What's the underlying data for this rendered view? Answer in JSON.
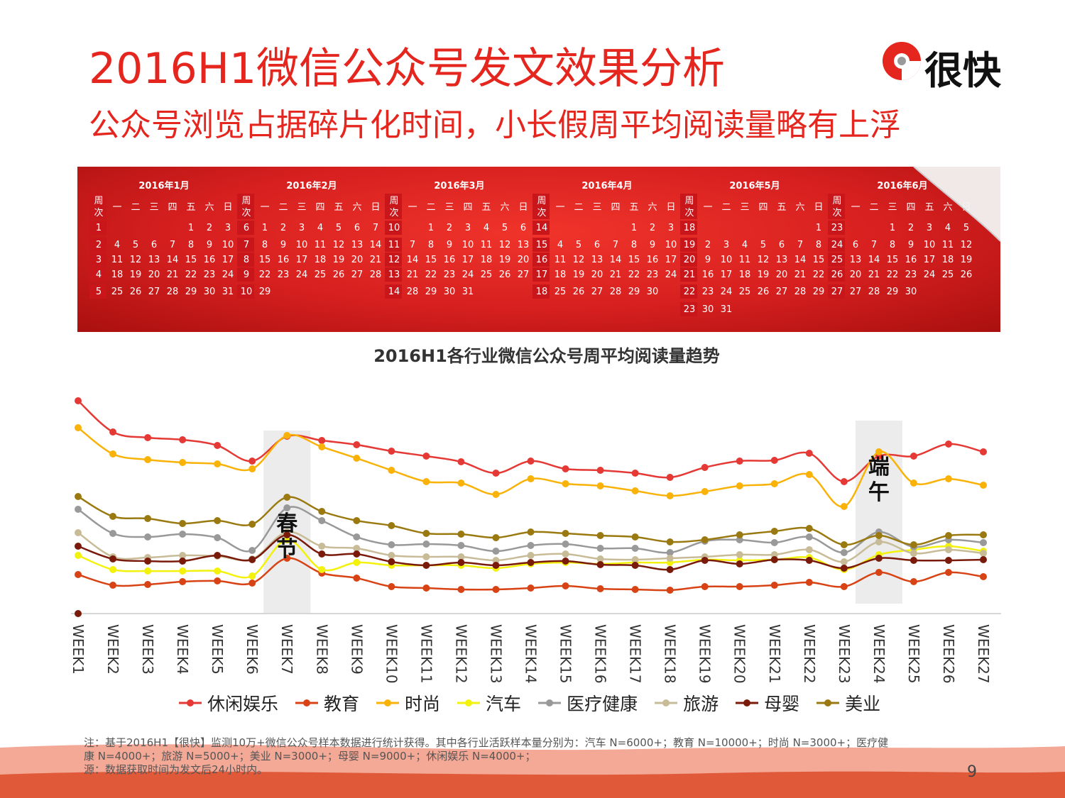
{
  "header": {
    "title": "2016H1微信公众号发文效果分析",
    "subtitle": "公众号浏览占据碎片化时间，小长假周平均阅读量略有上浮",
    "logo_text": "很快",
    "logo_icon": "pie-logo-icon"
  },
  "calendar": {
    "week_header": "周次",
    "weekday_labels": [
      "一",
      "二",
      "三",
      "四",
      "五",
      "六",
      "日"
    ],
    "months": [
      {
        "label": "2016年1月",
        "rows": [
          {
            "w": "1",
            "d": [
              "",
              "",
              "",
              "",
              "1",
              "2",
              "3"
            ]
          },
          {
            "w": "2",
            "d": [
              "4",
              "5",
              "6",
              "7",
              "8",
              "9",
              "10"
            ]
          },
          {
            "w": "3",
            "d": [
              "11",
              "12",
              "13",
              "14",
              "15",
              "16",
              "17"
            ]
          },
          {
            "w": "4",
            "d": [
              "18",
              "19",
              "20",
              "21",
              "22",
              "23",
              "24"
            ]
          },
          {
            "w": "5",
            "d": [
              "25",
              "26",
              "27",
              "28",
              "29",
              "30",
              "31"
            ]
          }
        ]
      },
      {
        "label": "2016年2月",
        "rows": [
          {
            "w": "6",
            "d": [
              "1",
              "2",
              "3",
              "4",
              "5",
              "6",
              "7"
            ]
          },
          {
            "w": "7",
            "d": [
              "8",
              "9",
              "10",
              "11",
              "12",
              "13",
              "14"
            ]
          },
          {
            "w": "8",
            "d": [
              "15",
              "16",
              "17",
              "18",
              "19",
              "20",
              "21"
            ]
          },
          {
            "w": "9",
            "d": [
              "22",
              "23",
              "24",
              "25",
              "26",
              "27",
              "28"
            ]
          },
          {
            "w": "10",
            "d": [
              "29",
              "",
              "",
              "",
              "",
              "",
              ""
            ]
          }
        ]
      },
      {
        "label": "2016年3月",
        "rows": [
          {
            "w": "10",
            "d": [
              "",
              "1",
              "2",
              "3",
              "4",
              "5",
              "6"
            ]
          },
          {
            "w": "11",
            "d": [
              "7",
              "8",
              "9",
              "10",
              "11",
              "12",
              "13"
            ]
          },
          {
            "w": "12",
            "d": [
              "14",
              "15",
              "16",
              "17",
              "18",
              "19",
              "20"
            ]
          },
          {
            "w": "13",
            "d": [
              "21",
              "22",
              "23",
              "24",
              "25",
              "26",
              "27"
            ]
          },
          {
            "w": "14",
            "d": [
              "28",
              "29",
              "30",
              "31",
              "",
              "",
              ""
            ]
          }
        ]
      },
      {
        "label": "2016年4月",
        "rows": [
          {
            "w": "14",
            "d": [
              "",
              "",
              "",
              "",
              "1",
              "2",
              "3"
            ]
          },
          {
            "w": "15",
            "d": [
              "4",
              "5",
              "6",
              "7",
              "8",
              "9",
              "10"
            ]
          },
          {
            "w": "16",
            "d": [
              "11",
              "12",
              "13",
              "14",
              "15",
              "16",
              "17"
            ]
          },
          {
            "w": "17",
            "d": [
              "18",
              "19",
              "20",
              "21",
              "22",
              "23",
              "24"
            ]
          },
          {
            "w": "18",
            "d": [
              "25",
              "26",
              "27",
              "28",
              "29",
              "30",
              ""
            ]
          }
        ]
      },
      {
        "label": "2016年5月",
        "rows": [
          {
            "w": "18",
            "d": [
              "",
              "",
              "",
              "",
              "",
              "",
              "1"
            ]
          },
          {
            "w": "19",
            "d": [
              "2",
              "3",
              "4",
              "5",
              "6",
              "7",
              "8"
            ]
          },
          {
            "w": "20",
            "d": [
              "9",
              "10",
              "11",
              "12",
              "13",
              "14",
              "15"
            ]
          },
          {
            "w": "21",
            "d": [
              "16",
              "17",
              "18",
              "19",
              "20",
              "21",
              "22"
            ]
          },
          {
            "w": "22",
            "d": [
              "23",
              "24",
              "25",
              "26",
              "27",
              "28",
              "29"
            ]
          },
          {
            "w": "23",
            "d": [
              "30",
              "31",
              "",
              "",
              "",
              "",
              ""
            ]
          }
        ]
      },
      {
        "label": "2016年6月",
        "rows": [
          {
            "w": "23",
            "d": [
              "",
              "",
              "1",
              "2",
              "3",
              "4",
              "5"
            ]
          },
          {
            "w": "24",
            "d": [
              "6",
              "7",
              "8",
              "9",
              "10",
              "11",
              "12"
            ]
          },
          {
            "w": "25",
            "d": [
              "13",
              "14",
              "15",
              "16",
              "17",
              "18",
              "19"
            ]
          },
          {
            "w": "26",
            "d": [
              "20",
              "21",
              "22",
              "23",
              "24",
              "25",
              "26"
            ]
          },
          {
            "w": "27",
            "d": [
              "27",
              "28",
              "29",
              "30",
              "",
              "",
              ""
            ]
          }
        ]
      }
    ]
  },
  "chart_data": {
    "type": "line",
    "title": "2016H1各行业微信公众号周平均阅读量趋势",
    "x": [
      "WEEK1",
      "WEEK2",
      "WEEK3",
      "WEEK4",
      "WEEK5",
      "WEEK6",
      "WEEK7",
      "WEEK8",
      "WEEK9",
      "WEEK10",
      "WEEK11",
      "WEEK12",
      "WEEK13",
      "WEEK14",
      "WEEK15",
      "WEEK16",
      "WEEK17",
      "WEEK18",
      "WEEK19",
      "WEEK20",
      "WEEK21",
      "WEEK22",
      "WEEK23",
      "WEEK24",
      "WEEK25",
      "WEEK26",
      "WEEK27"
    ],
    "ylim": [
      0,
      300
    ],
    "grid": false,
    "legend_position": "bottom",
    "series": [
      {
        "name": "休闲娱乐",
        "color": "#e53935",
        "values": [
          300,
          256,
          248,
          245,
          237,
          215,
          250,
          244,
          238,
          229,
          222,
          214,
          198,
          215,
          204,
          202,
          198,
          192,
          206,
          215,
          216,
          226,
          186,
          222,
          222,
          239,
          228
        ]
      },
      {
        "name": "教育",
        "color": "#d84315",
        "values": [
          55,
          40,
          41,
          45,
          46,
          43,
          78,
          57,
          50,
          38,
          36,
          34,
          34,
          36,
          39,
          35,
          34,
          33,
          38,
          38,
          40,
          44,
          38,
          58,
          45,
          58,
          52
        ]
      },
      {
        "name": "时尚",
        "color": "#f9b208",
        "values": [
          262,
          225,
          217,
          213,
          211,
          204,
          251,
          235,
          219,
          202,
          186,
          184,
          168,
          190,
          183,
          180,
          173,
          166,
          172,
          180,
          183,
          196,
          151,
          228,
          184,
          190,
          181
        ]
      },
      {
        "name": "汽车",
        "color": "#f2f20c",
        "values": [
          82,
          62,
          60,
          60,
          60,
          53,
          104,
          62,
          72,
          68,
          68,
          68,
          64,
          70,
          72,
          70,
          72,
          72,
          76,
          75,
          76,
          79,
          62,
          83,
          90,
          95,
          88
        ]
      },
      {
        "name": "医疗健康",
        "color": "#999999",
        "values": [
          147,
          113,
          108,
          112,
          107,
          89,
          149,
          131,
          108,
          97,
          98,
          96,
          88,
          96,
          98,
          92,
          92,
          86,
          102,
          104,
          100,
          108,
          86,
          115,
          94,
          104,
          100
        ]
      },
      {
        "name": "旅游",
        "color": "#c8bc98",
        "values": [
          114,
          80,
          79,
          82,
          81,
          77,
          115,
          95,
          92,
          82,
          80,
          80,
          75,
          82,
          84,
          77,
          76,
          78,
          80,
          83,
          83,
          90,
          73,
          101,
          85,
          90,
          85
        ]
      },
      {
        "name": "母婴",
        "color": "#7a1a0a",
        "values": [
          95,
          77,
          74,
          74,
          82,
          76,
          111,
          84,
          84,
          73,
          68,
          72,
          68,
          72,
          74,
          69,
          68,
          62,
          75,
          70,
          76,
          75,
          64,
          78,
          75,
          75,
          76
        ]
      },
      {
        "name": "美业",
        "color": "#9a7a10",
        "values": [
          165,
          137,
          134,
          127,
          131,
          126,
          164,
          144,
          131,
          124,
          113,
          112,
          107,
          115,
          113,
          110,
          108,
          101,
          104,
          111,
          116,
          120,
          97,
          110,
          97,
          110,
          111
        ]
      }
    ],
    "outlier_points": [
      {
        "x": "WEEK1",
        "y": 0,
        "color": "#7a1a0a"
      }
    ],
    "holiday_bands": [
      {
        "x": "WEEK7",
        "label": "春节",
        "label_chars": [
          "春",
          "节"
        ]
      },
      {
        "x": "WEEK24",
        "label": "端午",
        "label_chars": [
          "端",
          "午"
        ]
      }
    ]
  },
  "footer": {
    "note_line1": "注：基于2016H1【很快】监测10万+微信公众号样本数据进行统计获得。其中各行业活跃样本量分别为：汽车 N=6000+；教育 N=10000+；时尚 N=3000+；医疗健",
    "note_line2": "康 N=4000+；旅游 N=5000+；美业 N=3000+；母婴 N=9000+；休闲娱乐 N=4000+；",
    "note_line3": "源：数据获取时间为发文后24小时内。",
    "page_number": "9"
  }
}
